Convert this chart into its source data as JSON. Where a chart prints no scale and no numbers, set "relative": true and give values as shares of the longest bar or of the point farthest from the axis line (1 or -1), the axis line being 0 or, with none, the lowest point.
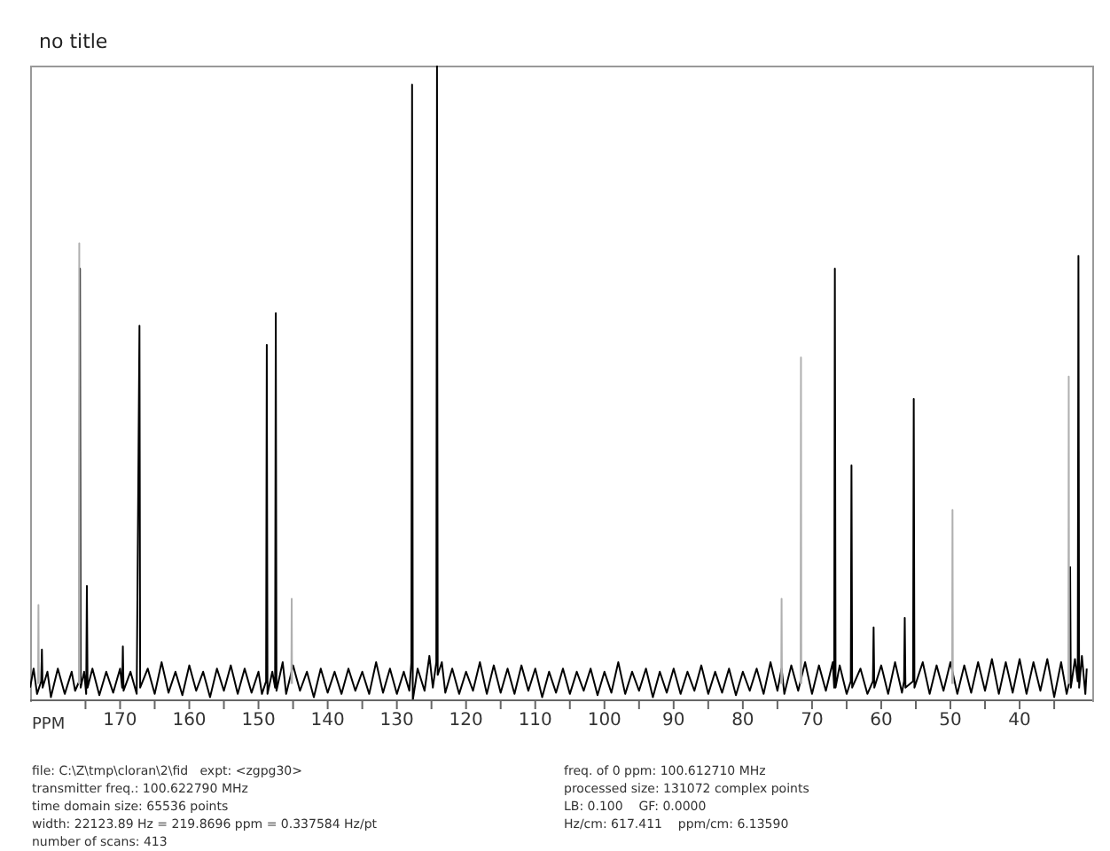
{
  "chart_data": {
    "type": "line",
    "title": "no title",
    "xlabel": "PPM",
    "relative": true,
    "xlim": [
      183,
      29.5
    ],
    "xticks": [
      {
        "value": 175,
        "label": null
      },
      170,
      {
        "value": 165,
        "label": null
      },
      160,
      {
        "value": 155,
        "label": null
      },
      150,
      {
        "value": 145,
        "label": null
      },
      140,
      {
        "value": 135,
        "label": null
      },
      130,
      {
        "value": 125,
        "label": null
      },
      120,
      {
        "value": 115,
        "label": null
      },
      110,
      {
        "value": 105,
        "label": null
      },
      100,
      {
        "value": 95,
        "label": null
      },
      90,
      {
        "value": 85,
        "label": null
      },
      80,
      {
        "value": 75,
        "label": null
      },
      70,
      {
        "value": 65,
        "label": null
      },
      60,
      {
        "value": 55,
        "label": null
      },
      50,
      {
        "value": 45,
        "label": null
      },
      40,
      {
        "value": 35,
        "label": null
      }
    ],
    "grid": false,
    "legend": false,
    "marker": "none",
    "line_style": "solid",
    "series": [
      {
        "color": "#000000",
        "x": [
          183,
          182.5,
          182,
          181.4,
          181.3,
          181.2,
          180.5,
          180,
          179,
          178,
          177,
          176.5,
          175.9,
          175.8,
          175.7,
          175.2,
          174.9,
          174.8,
          174.7,
          174,
          173,
          172,
          171,
          170,
          169.7,
          169.6,
          169.5,
          168.5,
          167.6,
          167.2,
          167.1,
          166,
          165,
          164,
          163,
          162,
          161,
          160,
          159,
          158,
          157,
          156,
          155,
          154,
          153,
          152,
          151,
          150,
          149.5,
          148.9,
          148.8,
          148.7,
          148,
          147.6,
          147.5,
          147.4,
          146.5,
          146,
          145,
          144,
          143,
          142,
          141,
          140,
          139,
          138,
          137,
          136,
          135,
          134,
          133,
          132,
          131,
          130,
          129,
          128.2,
          127.9,
          127.8,
          127.7,
          127,
          126,
          125.3,
          124.8,
          124.3,
          124.2,
          124.1,
          123.5,
          123,
          122,
          121,
          120,
          119,
          118,
          117,
          116,
          115,
          114,
          113,
          112,
          111,
          110,
          109,
          108,
          107,
          106,
          105,
          104,
          103,
          102,
          101,
          100,
          99,
          98,
          97,
          96,
          95,
          94,
          93,
          92,
          91,
          90,
          89,
          88,
          87,
          86,
          85,
          84,
          83,
          82,
          81,
          80,
          79,
          78,
          77,
          76,
          75,
          74.4,
          74,
          73,
          72,
          71,
          70,
          69,
          68,
          67,
          66.8,
          66.7,
          66.6,
          66,
          65,
          64.4,
          64.3,
          64.2,
          63,
          62,
          61.2,
          61.1,
          61,
          60,
          59,
          58,
          57,
          56.7,
          56.6,
          56.5,
          55.4,
          55.3,
          55.2,
          54,
          53,
          52,
          51,
          50,
          49,
          48,
          47,
          46,
          45,
          44,
          43,
          42,
          41,
          40,
          39,
          38,
          37,
          36,
          35,
          34,
          33.2,
          32.8,
          32.7,
          32.6,
          32,
          31.6,
          31.5,
          31.4,
          31,
          30.5,
          30.3
        ],
        "values": [
          0.02,
          0.05,
          0.01,
          0.03,
          0.08,
          0.02,
          0.045,
          0.005,
          0.05,
          0.01,
          0.045,
          0.015,
          0.03,
          0.68,
          0.02,
          0.045,
          0.01,
          0.18,
          0.02,
          0.05,
          0.008,
          0.045,
          0.012,
          0.05,
          0.02,
          0.085,
          0.015,
          0.045,
          0.01,
          0.59,
          0.02,
          0.05,
          0.01,
          0.06,
          0.012,
          0.045,
          0.008,
          0.055,
          0.015,
          0.045,
          0.005,
          0.05,
          0.015,
          0.055,
          0.01,
          0.05,
          0.012,
          0.045,
          0.01,
          0.03,
          0.56,
          0.01,
          0.045,
          0.02,
          0.61,
          0.015,
          0.06,
          0.01,
          0.055,
          0.015,
          0.045,
          0.005,
          0.05,
          0.012,
          0.045,
          0.01,
          0.05,
          0.015,
          0.045,
          0.01,
          0.06,
          0.012,
          0.05,
          0.01,
          0.045,
          0.015,
          0.06,
          0.97,
          0,
          0.05,
          0.015,
          0.07,
          0.02,
          0.06,
          1,
          0.04,
          0.06,
          0.012,
          0.05,
          0.01,
          0.045,
          0.015,
          0.06,
          0.01,
          0.055,
          0.012,
          0.05,
          0.01,
          0.055,
          0.015,
          0.05,
          0.005,
          0.045,
          0.012,
          0.05,
          0.01,
          0.045,
          0.015,
          0.05,
          0.008,
          0.045,
          0.012,
          0.06,
          0.01,
          0.045,
          0.015,
          0.05,
          0.005,
          0.045,
          0.012,
          0.05,
          0.01,
          0.045,
          0.015,
          0.055,
          0.01,
          0.045,
          0.012,
          0.05,
          0.008,
          0.045,
          0.015,
          0.05,
          0.01,
          0.06,
          0.015,
          0.05,
          0.01,
          0.055,
          0.015,
          0.06,
          0.01,
          0.055,
          0.015,
          0.06,
          0.02,
          0.68,
          0.02,
          0.055,
          0.01,
          0.03,
          0.37,
          0.02,
          0.05,
          0.01,
          0.03,
          0.115,
          0.02,
          0.055,
          0.01,
          0.06,
          0.012,
          0.03,
          0.13,
          0.02,
          0.03,
          0.475,
          0.02,
          0.06,
          0.01,
          0.055,
          0.015,
          0.06,
          0.01,
          0.055,
          0.012,
          0.06,
          0.015,
          0.065,
          0.01,
          0.06,
          0.012,
          0.065,
          0.01,
          0.06,
          0.015,
          0.065,
          0.005,
          0.06,
          0.01,
          0.03,
          0.21,
          0.02,
          0.065,
          0.03,
          0.7,
          0.02,
          0.07,
          0.01,
          0.05
        ]
      },
      {
        "color": "#b0b0b0",
        "x": [
          181.85,
          181.8,
          181.75,
          181.7,
          175.95,
          175.9,
          175.85,
          175.8,
          145.25,
          145.2,
          145.15,
          145.1,
          74.45,
          74.4,
          74.35,
          74.3,
          71.65,
          71.6,
          71.55,
          71.5,
          49.75,
          49.7,
          49.65,
          49.6,
          32.95,
          32.9,
          32.85
        ],
        "values": [
          0.026,
          0.15,
          0.026,
          null,
          0.026,
          0.72,
          0.026,
          null,
          0.026,
          0.16,
          0.026,
          null,
          0.026,
          0.16,
          0.026,
          null,
          0.026,
          0.54,
          0.026,
          null,
          0.026,
          0.3,
          0.026,
          null,
          0.026,
          0.51,
          0.026
        ]
      }
    ],
    "annotations": [
      "file: C:\\Z\\tmp\\cloran\\2\\fid   expt: <zgpg30>",
      "transmitter freq.: 100.622790 MHz",
      "time domain size: 65536 points",
      "width: 22123.89 Hz = 219.8696 ppm = 0.337584 Hz/pt",
      "number of scans: 413",
      "freq. of 0 ppm: 100.612710 MHz",
      "processed size: 131072 complex points",
      "LB: 0.100    GF: 0.0000",
      "Hz/cm: 617.411    ppm/cm: 6.13590"
    ]
  }
}
